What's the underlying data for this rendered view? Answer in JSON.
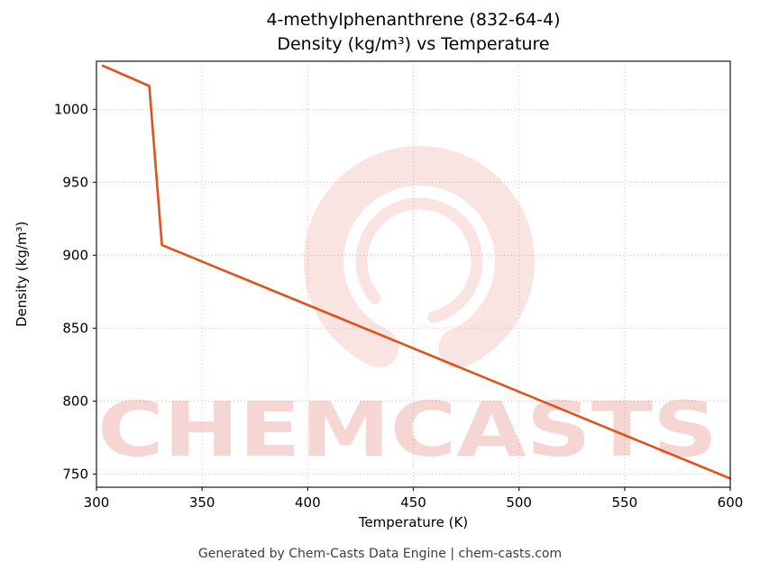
{
  "header": {
    "title_line1": "4-methylphenanthrene (832-64-4)",
    "title_line2": "Density (kg/m³) vs Temperature"
  },
  "footer": {
    "text": "Generated by Chem-Casts Data Engine | chem-casts.com"
  },
  "watermark": {
    "text": "CHEMCASTS",
    "logo": "chemcasts-circle-swirl-logo",
    "color": "#d9473a"
  },
  "chart_data": {
    "type": "line",
    "title": "4-methylphenanthrene (832-64-4) Density (kg/m³) vs Temperature",
    "xlabel": "Temperature (K)",
    "ylabel": "Density (kg/m³)",
    "xlim": [
      300,
      600
    ],
    "ylim": [
      741,
      1033
    ],
    "xticks": [
      300,
      350,
      400,
      450,
      500,
      550,
      600
    ],
    "yticks": [
      750,
      800,
      850,
      900,
      950,
      1000
    ],
    "grid": true,
    "grid_style": "dotted",
    "legend": false,
    "line_color": "#e0521c",
    "series": [
      {
        "name": "Density",
        "x": [
          303,
          325,
          331,
          600
        ],
        "y": [
          1030,
          1016,
          907,
          747
        ]
      }
    ]
  }
}
